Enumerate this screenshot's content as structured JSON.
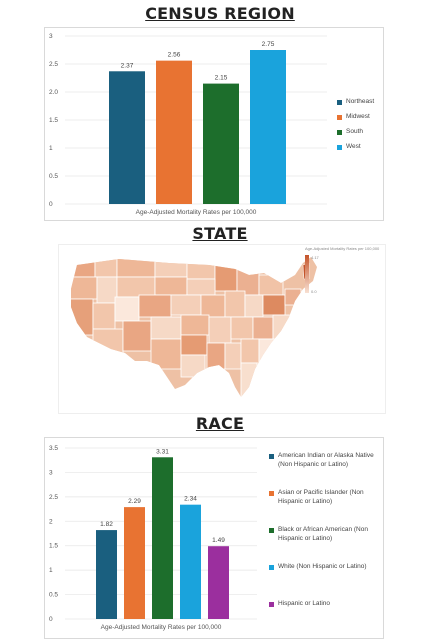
{
  "sections": {
    "census_title": "CENSUS REGION",
    "state_title": "STATE",
    "race_title": "RACE"
  },
  "map_legend": {
    "title": "Age-Adjusted Mortality Rates per 100,000",
    "max_label": "4.17",
    "min_label": "0.0",
    "color_low": "#f8e1d3",
    "color_high": "#c4542a"
  },
  "chart_data": [
    {
      "type": "bar",
      "title": "",
      "xlabel": "Age-Adjusted Mortality Rates per 100,000",
      "ylabel": "",
      "ylim": [
        0,
        3
      ],
      "yticks": [
        "0",
        "0.5",
        "1",
        "1.5",
        "2.0",
        "2.5",
        "3"
      ],
      "categories": [
        "Northeast",
        "Midwest",
        "South",
        "West"
      ],
      "values": [
        2.37,
        2.56,
        2.15,
        2.75
      ],
      "value_labels": [
        "2.37",
        "2.56",
        "2.15",
        "2.75"
      ],
      "colors": [
        "#1a5f7f",
        "#e87332",
        "#1d6e2c",
        "#1aa3dc"
      ],
      "legend": [
        "Northeast",
        "Midwest",
        "South",
        "West"
      ],
      "legend_position": "right",
      "grid": true
    },
    {
      "type": "bar",
      "title": "",
      "xlabel": "Age-Adjusted Mortality Rates per 100,000",
      "ylabel": "",
      "ylim": [
        0,
        3.5
      ],
      "yticks": [
        "0",
        "0.5",
        "1",
        "1.5",
        "2",
        "2.5",
        "3",
        "3.5"
      ],
      "categories": [
        "American Indian or Alaska Native (Non Hispanic or Latino)",
        "Asian or Pacific Islander (Non Hispanic or Latino)",
        "Black or African American (Non Hispanic or Latino)",
        "White (Non Hispanic or Latino)",
        "Hispanic or Latino"
      ],
      "values": [
        1.82,
        2.29,
        3.31,
        2.34,
        1.49
      ],
      "value_labels": [
        "1.82",
        "2.29",
        "3.31",
        "2.34",
        "1.49"
      ],
      "colors": [
        "#1a5f7f",
        "#e87332",
        "#1d6e2c",
        "#1aa3dc",
        "#9b2f9e"
      ],
      "legend": [
        "American Indian or Alaska Native (Non Hispanic or Latino)",
        "Asian or Pacific Islander (Non Hispanic or Latino)",
        "Black or African American (Non Hispanic or Latino)",
        "White (Non Hispanic or Latino)",
        "Hispanic or Latino"
      ],
      "legend_position": "right",
      "grid": true
    }
  ]
}
